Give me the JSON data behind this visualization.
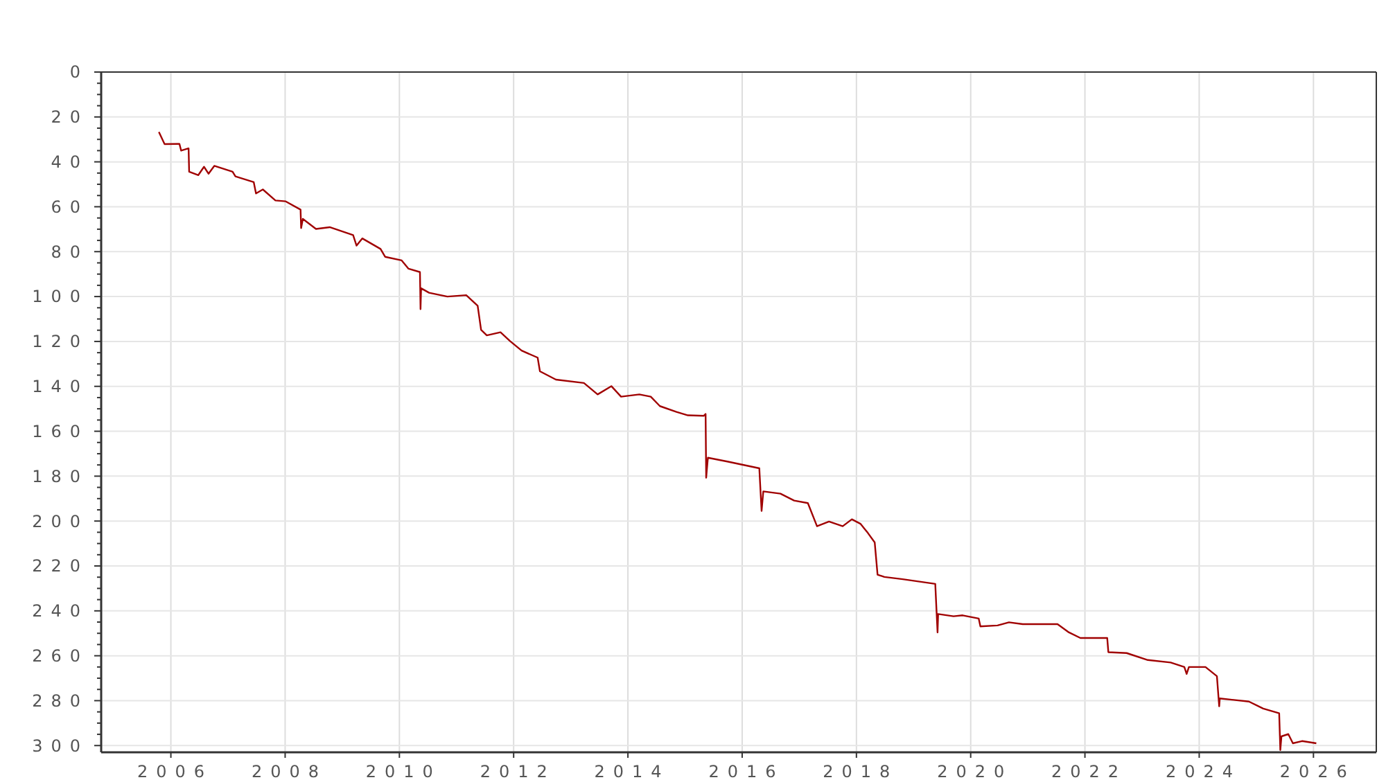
{
  "chart_data": {
    "type": "line",
    "xlim": [
      2004.78,
      2027.1
    ],
    "ylim": [
      303,
      0
    ],
    "xticks": [
      2006,
      2008,
      2010,
      2012,
      2014,
      2016,
      2018,
      2020,
      2022,
      2024,
      2026
    ],
    "yticks": [
      0,
      {
        "value": 5,
        "label": null
      },
      {
        "value": 10,
        "label": null
      },
      {
        "value": 15,
        "label": null
      },
      20,
      {
        "value": 25,
        "label": null
      },
      {
        "value": 30,
        "label": null
      },
      {
        "value": 35,
        "label": null
      },
      40,
      {
        "value": 45,
        "label": null
      },
      {
        "value": 50,
        "label": null
      },
      {
        "value": 55,
        "label": null
      },
      60,
      {
        "value": 65,
        "label": null
      },
      {
        "value": 70,
        "label": null
      },
      {
        "value": 75,
        "label": null
      },
      80,
      {
        "value": 85,
        "label": null
      },
      {
        "value": 90,
        "label": null
      },
      {
        "value": 95,
        "label": null
      },
      100,
      {
        "value": 105,
        "label": null
      },
      {
        "value": 110,
        "label": null
      },
      {
        "value": 115,
        "label": null
      },
      120,
      {
        "value": 125,
        "label": null
      },
      {
        "value": 130,
        "label": null
      },
      {
        "value": 135,
        "label": null
      },
      140,
      {
        "value": 145,
        "label": null
      },
      {
        "value": 150,
        "label": null
      },
      {
        "value": 155,
        "label": null
      },
      160,
      {
        "value": 165,
        "label": null
      },
      {
        "value": 170,
        "label": null
      },
      {
        "value": 175,
        "label": null
      },
      180,
      {
        "value": 185,
        "label": null
      },
      {
        "value": 190,
        "label": null
      },
      {
        "value": 195,
        "label": null
      },
      200,
      {
        "value": 205,
        "label": null
      },
      {
        "value": 210,
        "label": null
      },
      {
        "value": 215,
        "label": null
      },
      220,
      {
        "value": 225,
        "label": null
      },
      {
        "value": 230,
        "label": null
      },
      {
        "value": 235,
        "label": null
      },
      240,
      {
        "value": 245,
        "label": null
      },
      {
        "value": 250,
        "label": null
      },
      {
        "value": 255,
        "label": null
      },
      260,
      {
        "value": 265,
        "label": null
      },
      {
        "value": 270,
        "label": null
      },
      {
        "value": 275,
        "label": null
      },
      280,
      {
        "value": 285,
        "label": null
      },
      {
        "value": 290,
        "label": null
      },
      {
        "value": 295,
        "label": null
      },
      300
    ],
    "grid": true,
    "line_style": "solid",
    "series": [
      {
        "color": "#a00000",
        "x": [
          2005.79,
          2005.89,
          2006.15,
          2006.18,
          2006.31,
          2006.32,
          2006.48,
          2006.58,
          2006.66,
          2006.76,
          2007.08,
          2007.13,
          2007.45,
          2007.49,
          2007.61,
          2007.83,
          2008.01,
          2008.27,
          2008.28,
          2008.31,
          2008.54,
          2008.78,
          2009.19,
          2009.25,
          2009.35,
          2009.67,
          2009.75,
          2010.04,
          2010.16,
          2010.36,
          2010.37,
          2010.38,
          2010.52,
          2010.84,
          2011.17,
          2011.37,
          2011.43,
          2011.53,
          2011.77,
          2011.94,
          2012.14,
          2012.42,
          2012.46,
          2012.74,
          2013.23,
          2013.47,
          2013.71,
          2013.88,
          2014.2,
          2014.4,
          2014.56,
          2014.85,
          2015.05,
          2015.33,
          2015.36,
          2015.37,
          2015.4,
          2015.74,
          2016.3,
          2016.34,
          2016.37,
          2016.67,
          2016.91,
          2017.15,
          2017.31,
          2017.52,
          2017.76,
          2017.92,
          2018.07,
          2018.2,
          2018.32,
          2018.37,
          2018.49,
          2018.81,
          2019.38,
          2019.42,
          2019.43,
          2019.7,
          2019.86,
          2020.14,
          2020.17,
          2020.47,
          2020.67,
          2020.91,
          2021.52,
          2021.72,
          2021.92,
          2022.39,
          2022.41,
          2022.73,
          2023.1,
          2023.5,
          2023.74,
          2023.78,
          2023.82,
          2024.11,
          2024.31,
          2024.35,
          2024.36,
          2024.87,
          2025.12,
          2025.4,
          2025.42,
          2025.44,
          2025.56,
          2025.64,
          2025.8,
          2026.05
        ],
        "values": [
          26.7,
          32.1,
          32,
          35,
          34,
          44.4,
          45.9,
          42.2,
          45.3,
          41.8,
          44.4,
          46.5,
          49,
          54.1,
          52.3,
          57.2,
          57.6,
          61.3,
          69.5,
          65.4,
          69.9,
          69.1,
          72.6,
          77.3,
          74.1,
          78.8,
          82.3,
          83.9,
          87.6,
          89.1,
          105.6,
          96.3,
          98.3,
          100,
          99.4,
          104.1,
          114.8,
          117.3,
          115.9,
          119.9,
          124.1,
          127.2,
          133.3,
          137,
          138.5,
          143.6,
          139.9,
          144.6,
          143.6,
          144.6,
          148.8,
          151.4,
          152.9,
          153.1,
          152.3,
          180.7,
          171.8,
          173.5,
          176.5,
          195.5,
          186.8,
          187.8,
          190.9,
          192,
          202.3,
          200.2,
          202.3,
          199.2,
          201.2,
          205.3,
          209.5,
          223.9,
          224.9,
          225.9,
          228,
          249.6,
          241.4,
          242.4,
          242,
          243.4,
          246.9,
          246.5,
          245.1,
          245.9,
          245.9,
          249.6,
          252.1,
          252.1,
          258.4,
          258.8,
          261.9,
          263,
          265,
          268.1,
          265,
          265,
          269.1,
          282.5,
          279,
          280.4,
          283.5,
          285.6,
          302,
          295.9,
          294.9,
          299,
          298,
          299
        ]
      }
    ]
  }
}
